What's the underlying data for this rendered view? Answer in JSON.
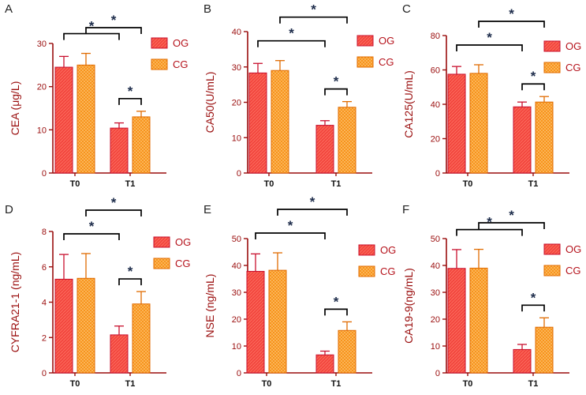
{
  "colors": {
    "og": "#f2473f",
    "og_stroke": "#c8102e",
    "cg": "#f7941d",
    "cg_stroke": "#e06b00",
    "axis": "#9a0d0d",
    "bracket": "#000000",
    "star": "#1c2b4a"
  },
  "chart_data": [
    {
      "panel": "A",
      "type": "bar",
      "ylabel": "CEA (μg/L)",
      "categories": [
        "T0",
        "T1"
      ],
      "ylim": [
        0,
        30
      ],
      "yticks": [
        0,
        10,
        20,
        30
      ],
      "series": [
        {
          "name": "OG",
          "values": [
            24.5,
            10.4
          ],
          "errors": [
            2.5,
            1.2
          ]
        },
        {
          "name": "CG",
          "values": [
            25.0,
            13.0
          ],
          "errors": [
            2.7,
            1.3
          ]
        }
      ],
      "legend": [
        "OG",
        "CG"
      ],
      "significance": [
        {
          "from": [
            0,
            0
          ],
          "to": [
            1,
            0
          ],
          "label": "*"
        },
        {
          "from": [
            0,
            1
          ],
          "to": [
            1,
            1
          ],
          "label": "*"
        },
        {
          "from": [
            1,
            0
          ],
          "to": [
            1,
            1
          ],
          "label": "*"
        }
      ]
    },
    {
      "panel": "B",
      "type": "bar",
      "ylabel": "CA50(U/mL)",
      "categories": [
        "T0",
        "T1"
      ],
      "ylim": [
        0,
        40
      ],
      "yticks": [
        0,
        10,
        20,
        30,
        40
      ],
      "series": [
        {
          "name": "OG",
          "values": [
            28.3,
            13.5
          ],
          "errors": [
            2.7,
            1.3
          ]
        },
        {
          "name": "CG",
          "values": [
            29.0,
            18.6
          ],
          "errors": [
            2.8,
            1.6
          ]
        }
      ],
      "legend": [
        "OG",
        "CG"
      ],
      "significance": [
        {
          "from": [
            0,
            0
          ],
          "to": [
            1,
            0
          ],
          "label": "*"
        },
        {
          "from": [
            0,
            1
          ],
          "to": [
            1,
            1
          ],
          "label": "*"
        },
        {
          "from": [
            1,
            0
          ],
          "to": [
            1,
            1
          ],
          "label": "*"
        }
      ]
    },
    {
      "panel": "C",
      "type": "bar",
      "ylabel": "CA125(U/mL)",
      "categories": [
        "T0",
        "T1"
      ],
      "ylim": [
        0,
        80
      ],
      "yticks": [
        0,
        20,
        40,
        60,
        80
      ],
      "series": [
        {
          "name": "OG",
          "values": [
            57.5,
            38.5
          ],
          "errors": [
            4.5,
            2.8
          ]
        },
        {
          "name": "CG",
          "values": [
            58.0,
            41.3
          ],
          "errors": [
            5.0,
            3.2
          ]
        }
      ],
      "legend": [
        "OG",
        "CG"
      ],
      "significance": [
        {
          "from": [
            0,
            0
          ],
          "to": [
            1,
            0
          ],
          "label": "*"
        },
        {
          "from": [
            0,
            1
          ],
          "to": [
            1,
            1
          ],
          "label": "*"
        },
        {
          "from": [
            1,
            0
          ],
          "to": [
            1,
            1
          ],
          "label": "*"
        }
      ]
    },
    {
      "panel": "D",
      "type": "bar",
      "ylabel": "CYFRA21-1 (ng/mL)",
      "categories": [
        "T0",
        "T1"
      ],
      "ylim": [
        0,
        8
      ],
      "yticks": [
        0,
        2,
        4,
        6,
        8
      ],
      "series": [
        {
          "name": "OG",
          "values": [
            5.3,
            2.15
          ],
          "errors": [
            1.4,
            0.5
          ]
        },
        {
          "name": "CG",
          "values": [
            5.35,
            3.9
          ],
          "errors": [
            1.4,
            0.7
          ]
        }
      ],
      "legend": [
        "OG",
        "CG"
      ],
      "significance": [
        {
          "from": [
            0,
            0
          ],
          "to": [
            1,
            0
          ],
          "label": "*"
        },
        {
          "from": [
            0,
            1
          ],
          "to": [
            1,
            1
          ],
          "label": "*"
        },
        {
          "from": [
            1,
            0
          ],
          "to": [
            1,
            1
          ],
          "label": "*"
        }
      ]
    },
    {
      "panel": "E",
      "type": "bar",
      "ylabel": "NSE (ng/mL)",
      "categories": [
        "T0",
        "T1"
      ],
      "ylim": [
        0,
        50
      ],
      "yticks": [
        0,
        10,
        20,
        30,
        40,
        50
      ],
      "series": [
        {
          "name": "OG",
          "values": [
            37.8,
            6.7
          ],
          "errors": [
            6.5,
            1.4
          ]
        },
        {
          "name": "CG",
          "values": [
            38.2,
            15.8
          ],
          "errors": [
            6.5,
            3.2
          ]
        }
      ],
      "legend": [
        "OG",
        "CG"
      ],
      "significance": [
        {
          "from": [
            0,
            0
          ],
          "to": [
            1,
            0
          ],
          "label": "*"
        },
        {
          "from": [
            0,
            1
          ],
          "to": [
            1,
            1
          ],
          "label": "*"
        },
        {
          "from": [
            1,
            0
          ],
          "to": [
            1,
            1
          ],
          "label": "*"
        }
      ]
    },
    {
      "panel": "F",
      "type": "bar",
      "ylabel": "CA19-9(ng/mL)",
      "categories": [
        "T0",
        "T1"
      ],
      "ylim": [
        0,
        50
      ],
      "yticks": [
        0,
        10,
        20,
        30,
        40,
        50
      ],
      "series": [
        {
          "name": "OG",
          "values": [
            38.9,
            8.7
          ],
          "errors": [
            7.0,
            1.9
          ]
        },
        {
          "name": "CG",
          "values": [
            39.0,
            17.0
          ],
          "errors": [
            7.0,
            3.5
          ]
        }
      ],
      "legend": [
        "OG",
        "CG"
      ],
      "significance": [
        {
          "from": [
            0,
            0
          ],
          "to": [
            1,
            0
          ],
          "label": "*"
        },
        {
          "from": [
            0,
            1
          ],
          "to": [
            1,
            1
          ],
          "label": "*"
        },
        {
          "from": [
            1,
            0
          ],
          "to": [
            1,
            1
          ],
          "label": "*"
        }
      ]
    }
  ]
}
